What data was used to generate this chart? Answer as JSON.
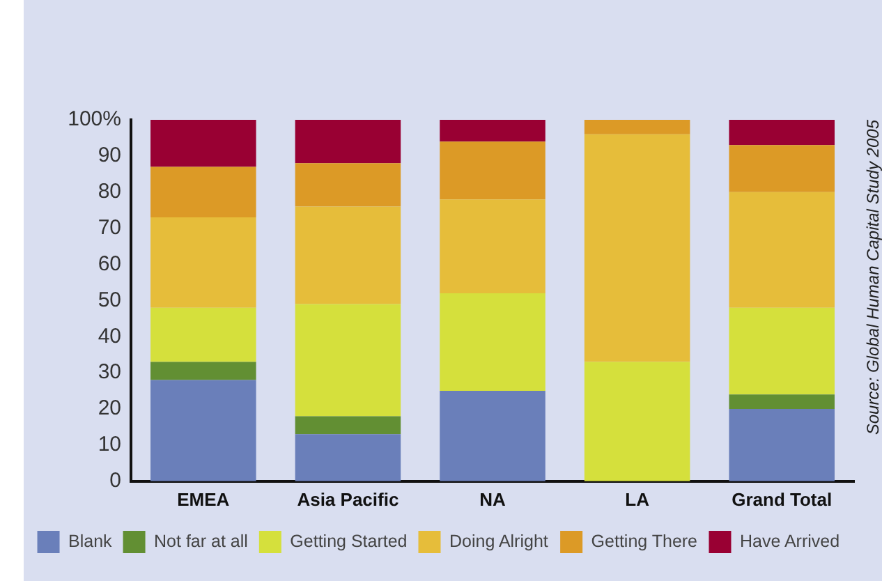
{
  "chart_data": {
    "type": "bar",
    "stacked": true,
    "categories": [
      "EMEA",
      "Asia Pacific",
      "NA",
      "LA",
      "Grand Total"
    ],
    "series": [
      {
        "name": "Blank",
        "color": "#6a7fba",
        "values": [
          28,
          13,
          25,
          0,
          20
        ]
      },
      {
        "name": "Not far at all",
        "color": "#628f33",
        "values": [
          5,
          5,
          0,
          0,
          4
        ]
      },
      {
        "name": "Getting Started",
        "color": "#d5e03c",
        "values": [
          15,
          31,
          27,
          33,
          24
        ]
      },
      {
        "name": "Doing Alright",
        "color": "#e6bd3a",
        "values": [
          25,
          27,
          26,
          63,
          32
        ]
      },
      {
        "name": "Getting There",
        "color": "#dc9a26",
        "values": [
          14,
          12,
          16,
          4,
          13
        ]
      },
      {
        "name": "Have Arrived",
        "color": "#990033",
        "values": [
          13,
          12,
          6,
          0,
          7
        ]
      }
    ],
    "ylim": [
      0,
      100
    ],
    "yticks": [
      0,
      10,
      20,
      30,
      40,
      50,
      60,
      70,
      80,
      90,
      {
        "value": 100,
        "label": "100%"
      }
    ],
    "grid": false,
    "legend": "bottom",
    "annotations": [
      "Source: Global Human Capital Study 2005"
    ]
  }
}
